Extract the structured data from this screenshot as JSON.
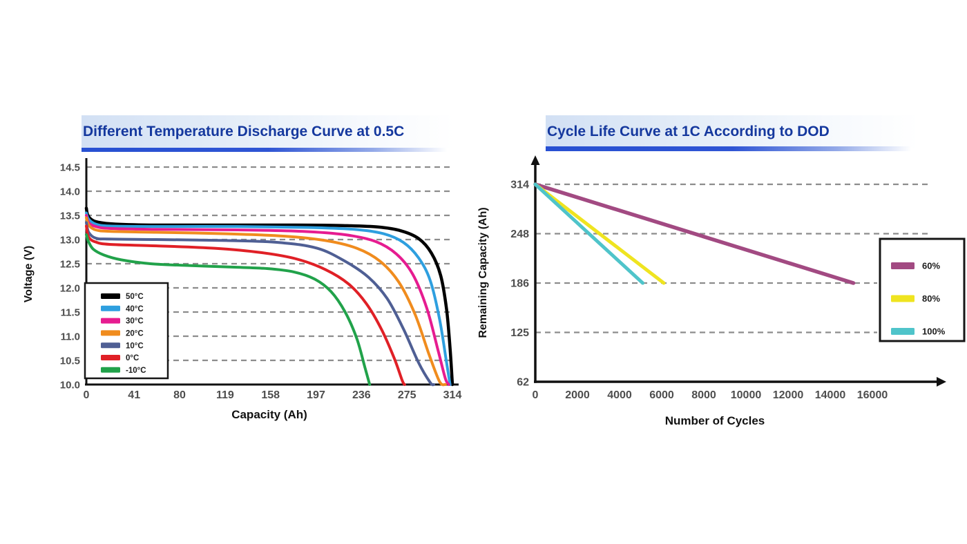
{
  "chart_data": [
    {
      "type": "line",
      "title": "Different Temperature Discharge Curve at 0.5C",
      "xlabel": "Capacity (Ah)",
      "ylabel": "Voltage (V)",
      "xlim": [
        0,
        314
      ],
      "ylim": [
        10.0,
        14.5
      ],
      "x_ticks": [
        0,
        41,
        80,
        119,
        158,
        197,
        236,
        275,
        314
      ],
      "x_tick_labels": [
        "0",
        "41",
        "80",
        "119",
        "158",
        "197",
        "236",
        "275",
        "314"
      ],
      "y_ticks": [
        10.0,
        10.5,
        11.0,
        11.5,
        12.0,
        12.5,
        13.0,
        13.5,
        14.0,
        14.5
      ],
      "y_tick_labels": [
        "10.0",
        "10.5",
        "11.0",
        "11.5",
        "12.0",
        "12.5",
        "13.0",
        "13.5",
        "14.0",
        "14.5"
      ],
      "grid": "dashed horizontal gridlines at every 0.5 V",
      "legend_position": "lower left inside plot",
      "series": [
        {
          "name": "50°C",
          "color": "#000000",
          "points": [
            [
              0,
              13.65
            ],
            [
              1,
              13.52
            ],
            [
              4,
              13.42
            ],
            [
              10,
              13.36
            ],
            [
              25,
              13.32
            ],
            [
              60,
              13.3
            ],
            [
              120,
              13.3
            ],
            [
              180,
              13.3
            ],
            [
              220,
              13.29
            ],
            [
              250,
              13.26
            ],
            [
              270,
              13.18
            ],
            [
              285,
              13.02
            ],
            [
              296,
              12.72
            ],
            [
              304,
              12.25
            ],
            [
              309,
              11.55
            ],
            [
              312,
              10.75
            ],
            [
              314,
              10.0
            ]
          ]
        },
        {
          "name": "40°C",
          "color": "#2e9fdf",
          "points": [
            [
              0,
              13.55
            ],
            [
              2,
              13.42
            ],
            [
              8,
              13.32
            ],
            [
              20,
              13.28
            ],
            [
              60,
              13.27
            ],
            [
              130,
              13.27
            ],
            [
              190,
              13.25
            ],
            [
              230,
              13.21
            ],
            [
              255,
              13.12
            ],
            [
              272,
              12.94
            ],
            [
              285,
              12.62
            ],
            [
              295,
              12.15
            ],
            [
              303,
              11.35
            ],
            [
              309,
              10.45
            ],
            [
              312,
              10.0
            ]
          ]
        },
        {
          "name": "30°C",
          "color": "#e61c90",
          "points": [
            [
              0,
              13.5
            ],
            [
              2,
              13.35
            ],
            [
              8,
              13.27
            ],
            [
              20,
              13.23
            ],
            [
              60,
              13.21
            ],
            [
              130,
              13.2
            ],
            [
              185,
              13.17
            ],
            [
              222,
              13.1
            ],
            [
              248,
              12.96
            ],
            [
              266,
              12.7
            ],
            [
              280,
              12.28
            ],
            [
              292,
              11.58
            ],
            [
              302,
              10.68
            ],
            [
              308,
              10.12
            ],
            [
              311,
              10.0
            ]
          ]
        },
        {
          "name": "20°C",
          "color": "#f08c1e",
          "points": [
            [
              0,
              13.45
            ],
            [
              2,
              13.3
            ],
            [
              8,
              13.2
            ],
            [
              20,
              13.17
            ],
            [
              60,
              13.15
            ],
            [
              120,
              13.12
            ],
            [
              170,
              13.07
            ],
            [
              205,
              12.98
            ],
            [
              232,
              12.82
            ],
            [
              252,
              12.55
            ],
            [
              268,
              12.12
            ],
            [
              282,
              11.45
            ],
            [
              294,
              10.62
            ],
            [
              303,
              10.06
            ],
            [
              308,
              10.0
            ]
          ]
        },
        {
          "name": "10°C",
          "color": "#4f5f94",
          "points": [
            [
              0,
              13.35
            ],
            [
              2,
              13.15
            ],
            [
              8,
              13.03
            ],
            [
              20,
              13.01
            ],
            [
              60,
              13.0
            ],
            [
              120,
              12.98
            ],
            [
              165,
              12.94
            ],
            [
              198,
              12.82
            ],
            [
              222,
              12.55
            ],
            [
              242,
              12.22
            ],
            [
              258,
              11.78
            ],
            [
              272,
              11.15
            ],
            [
              285,
              10.45
            ],
            [
              295,
              10.04
            ],
            [
              298,
              10.0
            ]
          ]
        },
        {
          "name": "0°C",
          "color": "#e02026",
          "points": [
            [
              0,
              13.28
            ],
            [
              2,
              13.05
            ],
            [
              8,
              12.95
            ],
            [
              20,
              12.9
            ],
            [
              60,
              12.87
            ],
            [
              110,
              12.82
            ],
            [
              150,
              12.73
            ],
            [
              180,
              12.6
            ],
            [
              205,
              12.38
            ],
            [
              225,
              12.08
            ],
            [
              240,
              11.68
            ],
            [
              253,
              11.15
            ],
            [
              264,
              10.55
            ],
            [
              271,
              10.08
            ],
            [
              273,
              10.0
            ]
          ]
        },
        {
          "name": "-10°C",
          "color": "#21a24a",
          "points": [
            [
              0,
              13.1
            ],
            [
              2,
              12.95
            ],
            [
              6,
              12.8
            ],
            [
              15,
              12.68
            ],
            [
              30,
              12.58
            ],
            [
              55,
              12.5
            ],
            [
              90,
              12.46
            ],
            [
              125,
              12.43
            ],
            [
              155,
              12.4
            ],
            [
              178,
              12.33
            ],
            [
              196,
              12.18
            ],
            [
              210,
              11.92
            ],
            [
              222,
              11.5
            ],
            [
              232,
              10.95
            ],
            [
              239,
              10.35
            ],
            [
              243,
              10.0
            ]
          ]
        }
      ]
    },
    {
      "type": "line",
      "title": "Cycle Life Curve at 1C According to DOD",
      "xlabel": "Number of Cycles",
      "ylabel": "Remaining Capacity (Ah)",
      "xlim": [
        0,
        16000
      ],
      "ylim": [
        62,
        314
      ],
      "x_ticks": [
        0,
        2000,
        4000,
        6000,
        8000,
        10000,
        12000,
        14000,
        16000
      ],
      "x_tick_labels": [
        "0",
        "2000",
        "4000",
        "6000",
        "8000",
        "10000",
        "12000",
        "14000",
        "16000"
      ],
      "y_ticks": [
        62,
        125,
        186,
        248,
        314
      ],
      "y_tick_labels": [
        "62",
        "125",
        "186",
        "248",
        "314"
      ],
      "grid": "dashed horizontal gridlines at 125, 186, 248, 314",
      "legend_position": "right inside plot",
      "axes_arrows": true,
      "series": [
        {
          "name": "60%",
          "color": "#a24a82",
          "points": [
            [
              0,
              314
            ],
            [
              15100,
              186
            ]
          ]
        },
        {
          "name": "80%",
          "color": "#efe420",
          "points": [
            [
              0,
              314
            ],
            [
              6100,
              186
            ]
          ]
        },
        {
          "name": "100%",
          "color": "#4fc4ca",
          "points": [
            [
              0,
              314
            ],
            [
              5100,
              186
            ]
          ]
        }
      ]
    }
  ]
}
